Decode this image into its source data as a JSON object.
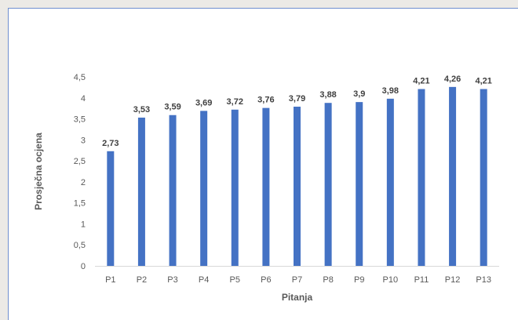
{
  "chart_data": {
    "type": "bar",
    "title": "",
    "xlabel": "Pitanja",
    "ylabel": "Prosječna ocjena",
    "categories": [
      "P1",
      "P2",
      "P3",
      "P4",
      "P5",
      "P6",
      "P7",
      "P8",
      "P9",
      "P10",
      "P11",
      "P12",
      "P13"
    ],
    "values": [
      2.73,
      3.53,
      3.59,
      3.69,
      3.72,
      3.76,
      3.79,
      3.88,
      3.9,
      3.98,
      4.21,
      4.26,
      4.21
    ],
    "value_labels": [
      "2,73",
      "3,53",
      "3,59",
      "3,69",
      "3,72",
      "3,76",
      "3,79",
      "3,88",
      "3,9",
      "3,98",
      "4,21",
      "4,26",
      "4,21"
    ],
    "y_ticks": [
      0,
      0.5,
      1,
      1.5,
      2,
      2.5,
      3,
      3.5,
      4,
      4.5
    ],
    "y_tick_labels": [
      "0",
      "0,5",
      "1",
      "1,5",
      "2",
      "2,5",
      "3",
      "3,5",
      "4",
      "4,5"
    ],
    "ylim": [
      0,
      4.5
    ],
    "grid": false,
    "legend": "none",
    "colors": {
      "bar": "#4472c4",
      "axis": "#d9d9d9",
      "border": "#6f8fcf",
      "background": "#ffffff",
      "outer_background": "#eceae6"
    }
  }
}
